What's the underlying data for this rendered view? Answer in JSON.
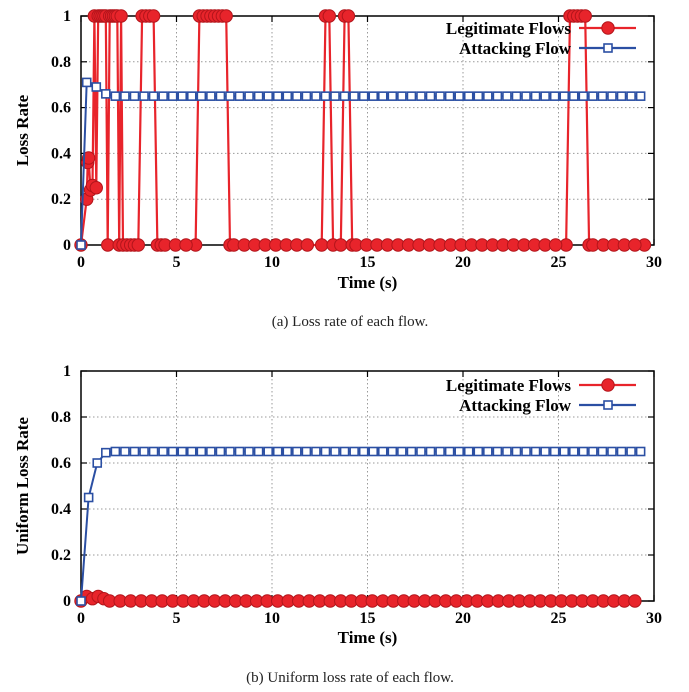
{
  "colors": {
    "legitimate": "#e8242b",
    "legitimate_edge": "#b3151b",
    "attacking": "#2b4fa3",
    "grid": "#9a9a9a",
    "axis": "#000000"
  },
  "chart_data": [
    {
      "type": "line",
      "caption": "(a) Loss rate of each flow.",
      "xlabel": "Time (s)",
      "ylabel": "Loss Rate",
      "xlim": [
        0,
        30
      ],
      "ylim": [
        0,
        1
      ],
      "xticks": [
        "0",
        "5",
        "10",
        "15",
        "20",
        "25",
        "30"
      ],
      "yticks": [
        "0",
        "0.2",
        "0.4",
        "0.6",
        "0.8",
        "1"
      ],
      "grid": true,
      "legend_position": "top-right",
      "series": [
        {
          "name": "Legitimate Flows",
          "marker": "circle",
          "color": "#e8242b",
          "x": [
            0,
            0.3,
            0.35,
            0.4,
            0.5,
            0.6,
            0.7,
            0.8,
            0.9,
            1.0,
            1.1,
            1.2,
            1.3,
            1.4,
            1.5,
            1.6,
            1.7,
            1.8,
            1.9,
            2.0,
            2.1,
            2.2,
            2.4,
            2.6,
            2.8,
            3.0,
            3.2,
            3.4,
            3.6,
            3.8,
            4.0,
            4.2,
            4.4,
            6.0,
            6.2,
            6.4,
            6.6,
            6.8,
            7.0,
            7.2,
            7.4,
            7.6,
            7.8,
            8.0,
            12.6,
            12.8,
            13.0,
            13.2,
            13.6,
            13.8,
            14.0,
            14.2,
            14.4,
            25.4,
            25.6,
            25.8,
            26.0,
            26.2,
            26.4,
            26.6,
            26.8,
            29.5
          ],
          "y": [
            0,
            0.2,
            0.36,
            0.38,
            0.24,
            0.26,
            1,
            0.25,
            1,
            1,
            1,
            1,
            1,
            0,
            1,
            1,
            1,
            1,
            1,
            0,
            1,
            0,
            0,
            0,
            0,
            0,
            1,
            1,
            1,
            1,
            0,
            0,
            0,
            0,
            1,
            1,
            1,
            1,
            1,
            1,
            1,
            1,
            0,
            0,
            0,
            1,
            1,
            0,
            0,
            1,
            1,
            0,
            0,
            0,
            1,
            1,
            1,
            1,
            1,
            0,
            0,
            0
          ]
        },
        {
          "name": "Attacking Flow",
          "marker": "square",
          "color": "#2b4fa3",
          "x": [
            0,
            0.3,
            0.8,
            1.3
          ],
          "y": [
            0,
            0.71,
            0.69,
            0.66
          ],
          "steady_from": 1.3,
          "steady_to": 29.5,
          "steady_value": 0.65
        }
      ]
    },
    {
      "type": "line",
      "caption": "(b) Uniform loss rate of each flow.",
      "xlabel": "Time (s)",
      "ylabel": "Uniform Loss Rate",
      "xlim": [
        0,
        30
      ],
      "ylim": [
        0,
        1
      ],
      "xticks": [
        "0",
        "5",
        "10",
        "15",
        "20",
        "25",
        "30"
      ],
      "yticks": [
        "0",
        "0.2",
        "0.4",
        "0.6",
        "0.8",
        "1"
      ],
      "grid": true,
      "legend_position": "top-right",
      "series": [
        {
          "name": "Legitimate Flows",
          "marker": "circle",
          "color": "#e8242b",
          "x": [
            0,
            0.3,
            0.6,
            0.9,
            1.2,
            1.5
          ],
          "y": [
            0,
            0.02,
            0.01,
            0.02,
            0.01,
            0.0
          ],
          "steady_from": 1.5,
          "steady_to": 29.5,
          "steady_value": 0.0
        },
        {
          "name": "Attacking Flow",
          "marker": "square",
          "color": "#2b4fa3",
          "x": [
            0,
            0.4,
            0.85,
            1.3,
            1.8
          ],
          "y": [
            0,
            0.45,
            0.6,
            0.645,
            0.65
          ],
          "steady_from": 1.8,
          "steady_to": 29.5,
          "steady_value": 0.65
        }
      ]
    }
  ]
}
